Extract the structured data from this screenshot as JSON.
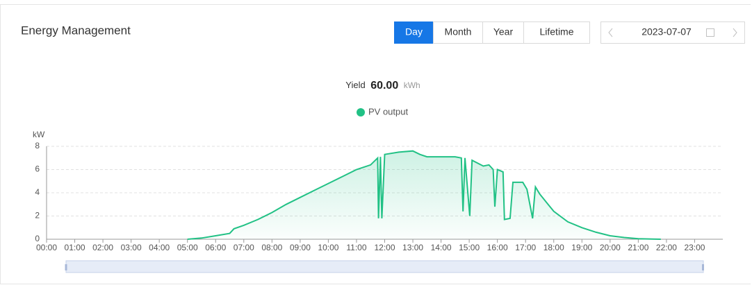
{
  "header": {
    "title": "Energy Management",
    "tabs": [
      "Day",
      "Month",
      "Year",
      "Lifetime"
    ],
    "active_tab": 0,
    "date": "2023-07-07"
  },
  "summary": {
    "label": "Yield",
    "value": "60.00",
    "unit": "kWh"
  },
  "chart_data": {
    "type": "area",
    "y_label": "kW",
    "x": [
      5.0,
      5.5,
      6.0,
      6.5,
      6.65,
      7.0,
      7.5,
      8.0,
      8.5,
      9.0,
      9.5,
      10.0,
      10.5,
      11.0,
      11.5,
      11.75,
      11.78,
      11.85,
      11.9,
      12.0,
      12.5,
      13.0,
      13.25,
      13.5,
      14.0,
      14.5,
      14.72,
      14.78,
      14.85,
      15.02,
      15.1,
      15.5,
      15.7,
      15.85,
      15.91,
      16.0,
      16.2,
      16.25,
      16.45,
      16.55,
      16.9,
      17.05,
      17.25,
      17.35,
      17.5,
      17.8,
      18.0,
      18.5,
      19.0,
      19.5,
      20.0,
      20.5,
      21.0,
      21.5,
      21.8
    ],
    "series": [
      {
        "name": "PV output",
        "color": "#21c185",
        "values": [
          0,
          0.1,
          0.3,
          0.5,
          0.9,
          1.2,
          1.7,
          2.3,
          3.0,
          3.6,
          4.2,
          4.8,
          5.4,
          6.0,
          6.4,
          7.0,
          1.8,
          7.1,
          1.8,
          7.3,
          7.5,
          7.6,
          7.3,
          7.1,
          7.1,
          7.1,
          7.0,
          2.4,
          7.0,
          2.0,
          6.8,
          6.3,
          6.4,
          6.0,
          2.8,
          6.0,
          5.8,
          1.7,
          1.8,
          4.9,
          4.9,
          4.3,
          1.8,
          4.5,
          3.9,
          3.0,
          2.4,
          1.5,
          1.0,
          0.6,
          0.3,
          0.15,
          0.05,
          0.02,
          0
        ]
      }
    ],
    "xlim": [
      0,
      24
    ],
    "xticks": [
      {
        "value": 0,
        "label": "00:00"
      },
      {
        "value": 1,
        "label": "01:00"
      },
      {
        "value": 2,
        "label": "02:00"
      },
      {
        "value": 3,
        "label": "03:00"
      },
      {
        "value": 4,
        "label": "04:00"
      },
      {
        "value": 5,
        "label": "05:00"
      },
      {
        "value": 6,
        "label": "06:00"
      },
      {
        "value": 7,
        "label": "07:00"
      },
      {
        "value": 8,
        "label": "08:00"
      },
      {
        "value": 9,
        "label": "09:00"
      },
      {
        "value": 10,
        "label": "10:00"
      },
      {
        "value": 11,
        "label": "11:00"
      },
      {
        "value": 12,
        "label": "12:00"
      },
      {
        "value": 13,
        "label": "13:00"
      },
      {
        "value": 14,
        "label": "14:00"
      },
      {
        "value": 15,
        "label": "15:00"
      },
      {
        "value": 16,
        "label": "16:00"
      },
      {
        "value": 17,
        "label": "17:00"
      },
      {
        "value": 18,
        "label": "18:00"
      },
      {
        "value": 19,
        "label": "19:00"
      },
      {
        "value": 20,
        "label": "20:00"
      },
      {
        "value": 21,
        "label": "21:00"
      },
      {
        "value": 22,
        "label": "22:00"
      },
      {
        "value": 23,
        "label": "23:00"
      }
    ],
    "ylim": [
      0,
      8
    ],
    "yticks": [
      0,
      2,
      4,
      6,
      8
    ],
    "grid": true
  }
}
